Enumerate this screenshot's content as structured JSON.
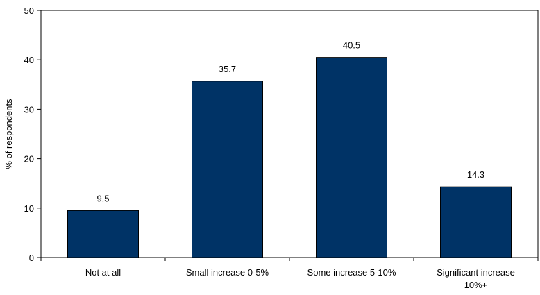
{
  "chart_data": {
    "type": "bar",
    "title": "",
    "xlabel": "",
    "ylabel": "% of respondents",
    "categories": [
      [
        "Not at all"
      ],
      [
        "Small increase 0-5%"
      ],
      [
        "Some increase 5-10%"
      ],
      [
        "Significant increase",
        "10%+"
      ]
    ],
    "values": [
      9.5,
      35.7,
      40.5,
      14.3
    ],
    "value_labels": [
      "9.5",
      "35.7",
      "40.5",
      "14.3"
    ],
    "ylim": [
      0,
      50
    ],
    "yticks": [
      "0",
      "10",
      "20",
      "30",
      "40",
      "50"
    ],
    "grid": false,
    "legend": "none",
    "colors": {
      "bar": "#003366",
      "axis": "#000000"
    }
  }
}
